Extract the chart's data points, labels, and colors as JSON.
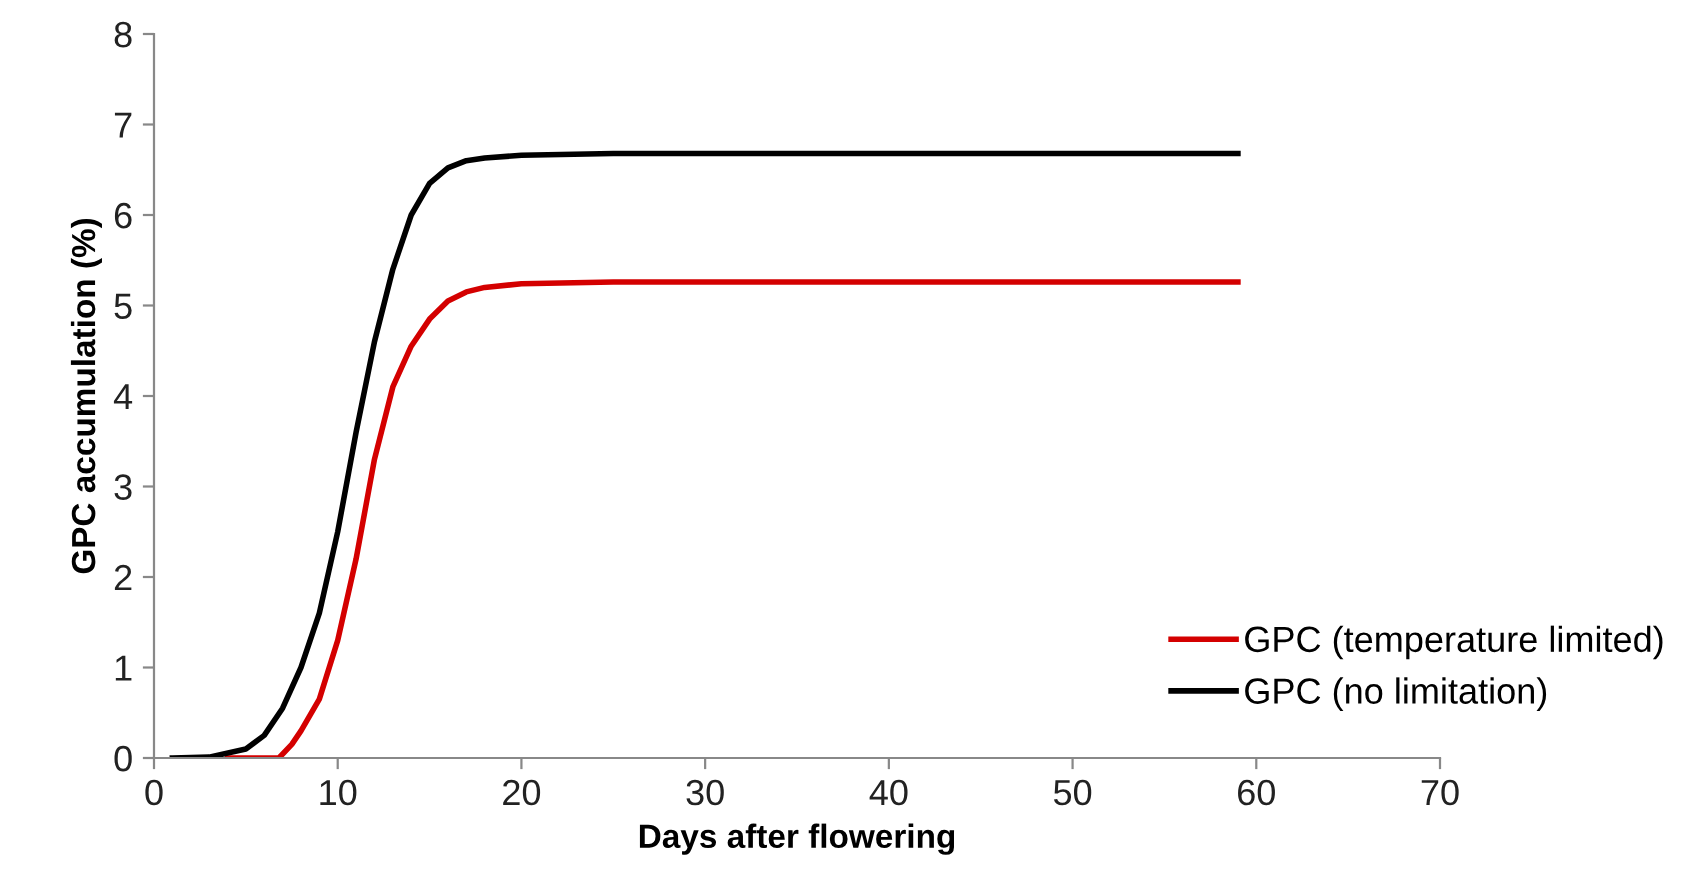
{
  "chart_data": {
    "type": "line",
    "xlabel": "Days after flowering",
    "ylabel": "GPC accumulation (%)",
    "xlim": [
      0,
      70
    ],
    "xticks": [
      0,
      10,
      20,
      30,
      40,
      50,
      60,
      70
    ],
    "ylim": [
      0,
      8
    ],
    "yticks": [
      0,
      1,
      2,
      3,
      4,
      5,
      6,
      7,
      8
    ],
    "grid": false,
    "legend": "bottom right",
    "marker": "none",
    "line_style": "solid",
    "series": [
      {
        "name": "GPC (temperature limited)",
        "color": "#d40000",
        "x": [
          4,
          6.8,
          7.5,
          8,
          9,
          10,
          11,
          12,
          13,
          14,
          15,
          16,
          17,
          18,
          20,
          25,
          59
        ],
        "values": [
          0,
          0,
          0.15,
          0.3,
          0.65,
          1.3,
          2.2,
          3.3,
          4.1,
          4.55,
          4.85,
          5.05,
          5.15,
          5.2,
          5.24,
          5.26,
          5.26
        ]
      },
      {
        "name": "GPC (no limitation)",
        "color": "#000000",
        "x": [
          1,
          3,
          5,
          6,
          7,
          8,
          9,
          10,
          11,
          12,
          13,
          14,
          15,
          16,
          17,
          18,
          20,
          25,
          59
        ],
        "values": [
          0,
          0.01,
          0.1,
          0.25,
          0.55,
          1.0,
          1.6,
          2.5,
          3.6,
          4.6,
          5.4,
          6.0,
          6.35,
          6.52,
          6.6,
          6.63,
          6.66,
          6.68,
          6.68
        ]
      }
    ]
  }
}
